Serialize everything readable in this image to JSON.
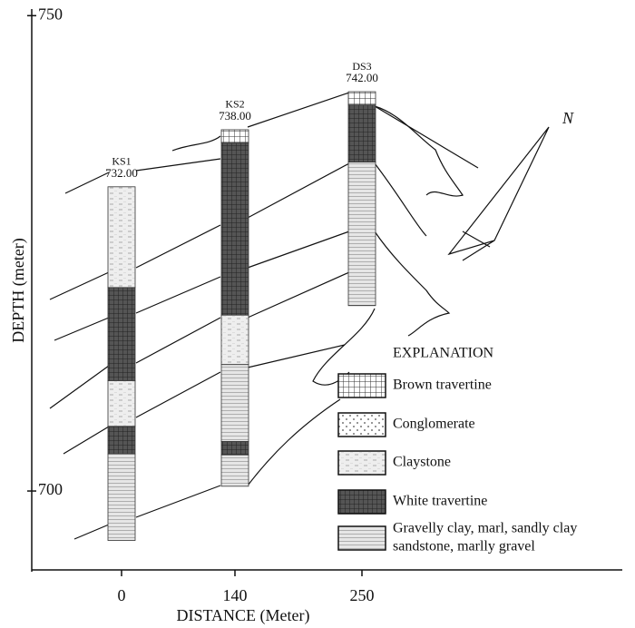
{
  "y_axis": {
    "label": "DEPTH (meter)",
    "lim": [
      691.7,
      750.5
    ],
    "ticks": [
      700,
      750
    ]
  },
  "x_axis": {
    "label": "DISTANCE (Meter)",
    "categories": [
      "0",
      "140",
      "250"
    ]
  },
  "wells": [
    {
      "name": "KS1",
      "elevation": {
        "value": 732,
        "label": "732.00"
      },
      "layers": [
        {
          "rock": "Claystone",
          "thickness": 10.6
        },
        {
          "rock": "White travertine",
          "thickness": 9.8
        },
        {
          "rock": "Claystone",
          "thickness": 4.8
        },
        {
          "rock": "White travertine",
          "thickness": 2.9
        },
        {
          "rock": "Gravelly clay, marl, sandly clay",
          "thickness": 9.1
        }
      ]
    },
    {
      "name": "KS2",
      "elevation": {
        "value": 738,
        "label": "738.00"
      },
      "layers": [
        {
          "rock": "Brown travertine",
          "thickness": 1.4
        },
        {
          "rock": "White travertine",
          "thickness": 18.1
        },
        {
          "rock": "Claystone",
          "thickness": 5.2
        },
        {
          "rock": "Gravelly clay, marl, sandly clay",
          "thickness": 8.1
        },
        {
          "rock": "White travertine",
          "thickness": 1.4
        },
        {
          "rock": "Gravelly clay, marl, sandly clay",
          "thickness": 3.3
        }
      ]
    },
    {
      "name": "DS3",
      "elevation": {
        "value": 742,
        "label": "742.00"
      },
      "layers": [
        {
          "rock": "Brown travertine",
          "thickness": 1.4
        },
        {
          "rock": "White travertine",
          "thickness": 6.0
        },
        {
          "rock": "Gravelly clay, marl, sandly clay",
          "thickness": 15.1
        }
      ]
    }
  ],
  "legend": {
    "title": "EXPLANATION",
    "items": [
      {
        "lines": [
          "Brown travertine"
        ]
      },
      {
        "lines": [
          "Conglomerate"
        ]
      },
      {
        "lines": [
          "Claystone"
        ]
      },
      {
        "lines": [
          "White travertine"
        ]
      },
      {
        "lines": [
          "Gravelly clay, marl, sandly clay",
          "sandstone, marlly gravel"
        ]
      }
    ]
  }
}
